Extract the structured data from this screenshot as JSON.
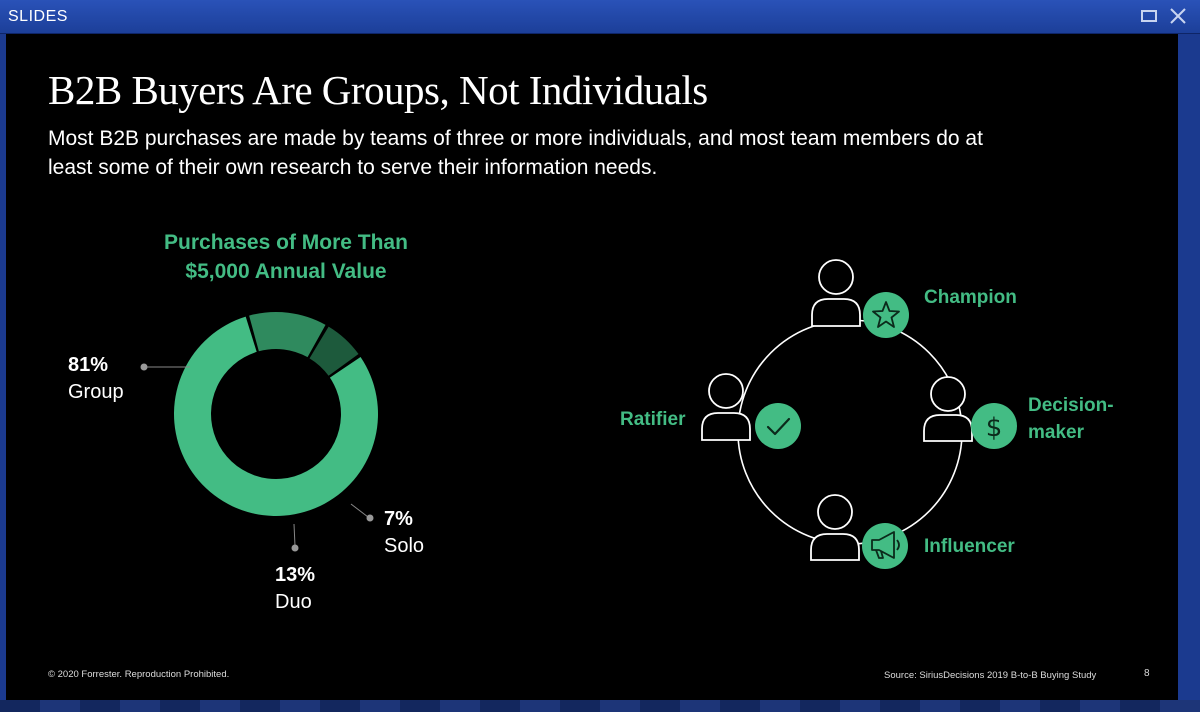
{
  "window": {
    "title": "SLIDES"
  },
  "slide": {
    "title": "B2B Buyers Are Groups, Not Individuals",
    "subtitle_line1": "Most B2B purchases are made by teams of three or more individuals, and most team members do at",
    "subtitle_line2": "least some of their own research to serve their information needs.",
    "footer_left": "© 2020 Forrester. Reproduction Prohibited.",
    "footer_right": "Source: SiriusDecisions 2019 B-to-B Buying Study",
    "page_number": "8"
  },
  "chart_data": {
    "type": "pie",
    "title_line1": "Purchases of More Than",
    "title_line2": "$5,000 Annual Value",
    "slices": [
      {
        "label": "Group",
        "percent_label": "81%",
        "value": 81,
        "color": "#43bc84"
      },
      {
        "label": "Solo",
        "percent_label": "7%",
        "value": 7,
        "color": "#1d5a3c"
      },
      {
        "label": "Duo",
        "percent_label": "13%",
        "value": 13,
        "color": "#2f8a5e"
      }
    ]
  },
  "roles": {
    "champion": {
      "label": "Champion",
      "icon": "star-icon"
    },
    "decision_maker": {
      "label_line1": "Decision-",
      "label_line2": "maker",
      "icon": "dollar-icon"
    },
    "influencer": {
      "label": "Influencer",
      "icon": "megaphone-icon"
    },
    "ratifier": {
      "label": "Ratifier",
      "icon": "checkmark-icon"
    }
  },
  "colors": {
    "accent": "#43bc84",
    "background": "#000000",
    "window_chrome": "#1b3a8f"
  }
}
